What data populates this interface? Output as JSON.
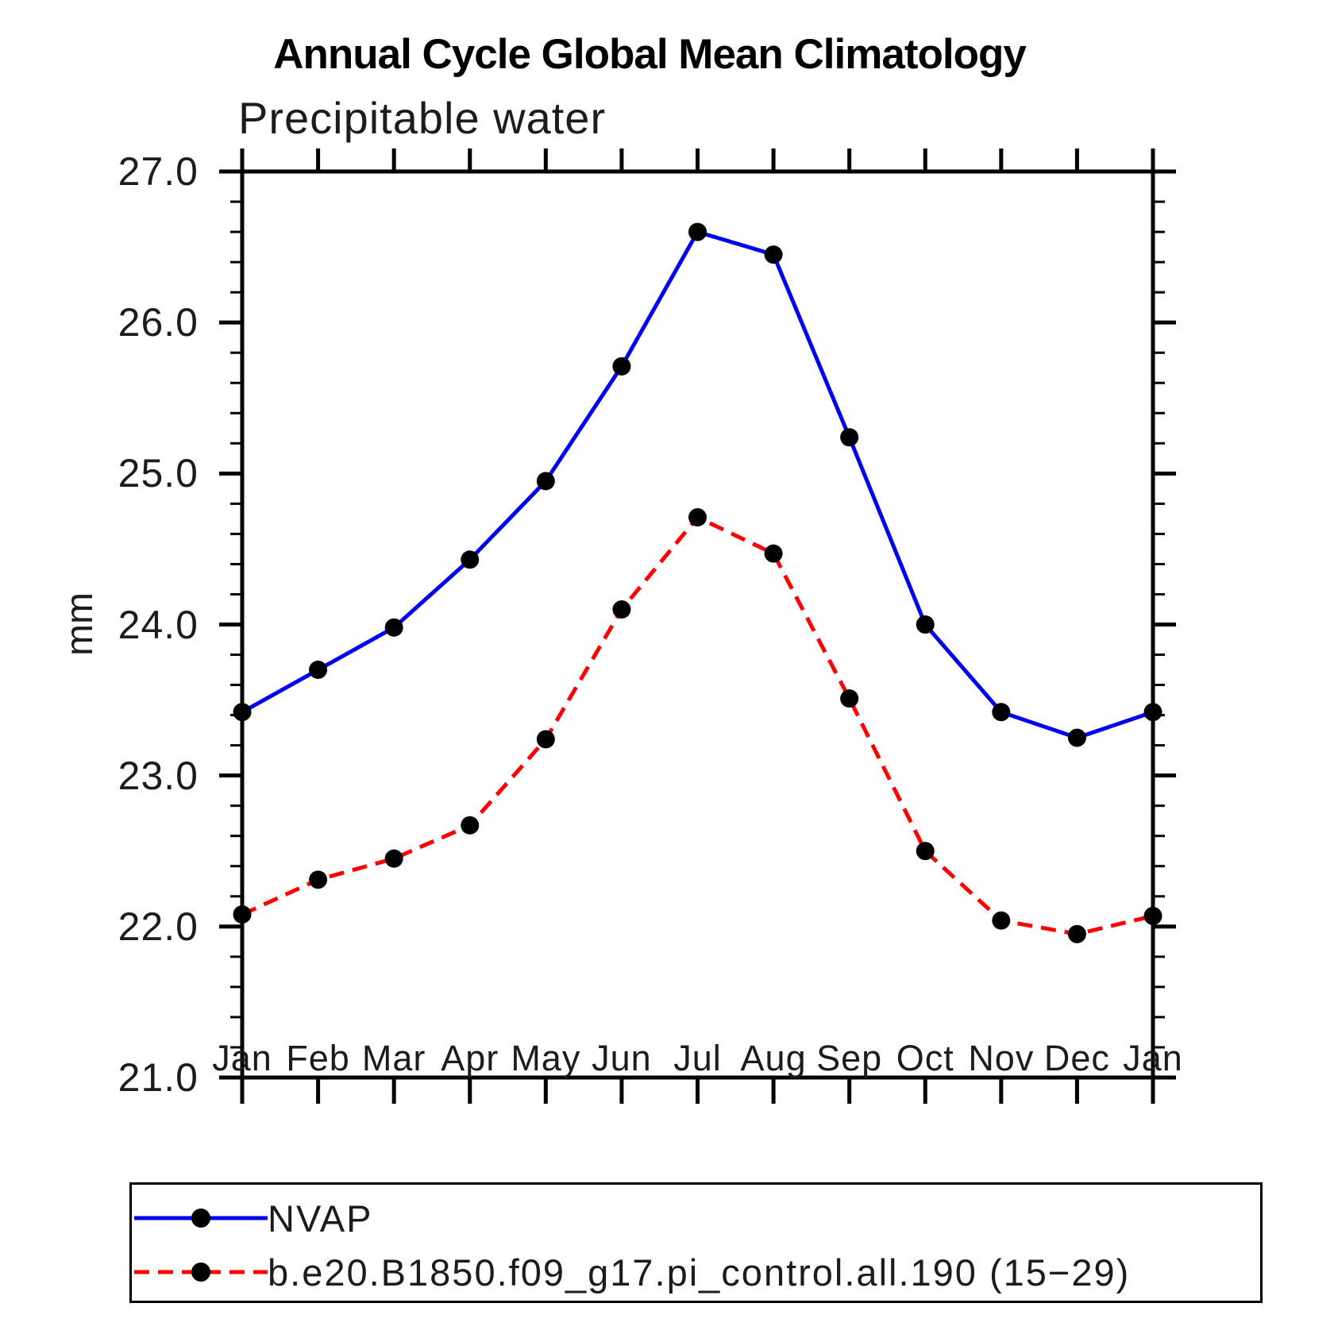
{
  "title": "Annual Cycle Global Mean Climatology",
  "chart_data": {
    "type": "line",
    "title": "Annual Cycle Global Mean Climatology",
    "subtitle": "Precipitable water",
    "xlabel": "",
    "ylabel": "mm",
    "categories": [
      "Jan",
      "Feb",
      "Mar",
      "Apr",
      "May",
      "Jun",
      "Jul",
      "Aug",
      "Sep",
      "Oct",
      "Nov",
      "Dec",
      "Jan"
    ],
    "ylim": [
      21.0,
      27.0
    ],
    "y_major_tick_step": 1.0,
    "y_minor_tick_step": 0.2,
    "y_tick_labels": [
      "21.0",
      "22.0",
      "23.0",
      "24.0",
      "25.0",
      "26.0",
      "27.0"
    ],
    "grid": false,
    "legend_position": "bottom-left-box",
    "series": [
      {
        "name": "NVAP",
        "color": "#0000ee",
        "line_style": "solid",
        "marker": "filled-circle",
        "marker_color": "#000000",
        "values": [
          23.42,
          23.7,
          23.98,
          24.43,
          24.95,
          25.71,
          26.6,
          26.45,
          25.24,
          24.0,
          23.42,
          23.25,
          23.42
        ]
      },
      {
        "name": "b.e20.B1850.f09_g17.pi_control.all.190 (15−29)",
        "color": "#ff0000",
        "line_style": "dashed",
        "marker": "filled-circle",
        "marker_color": "#000000",
        "values": [
          22.08,
          22.31,
          22.45,
          22.67,
          23.24,
          24.1,
          24.71,
          24.47,
          23.51,
          22.5,
          22.04,
          21.95,
          22.07
        ]
      }
    ]
  }
}
